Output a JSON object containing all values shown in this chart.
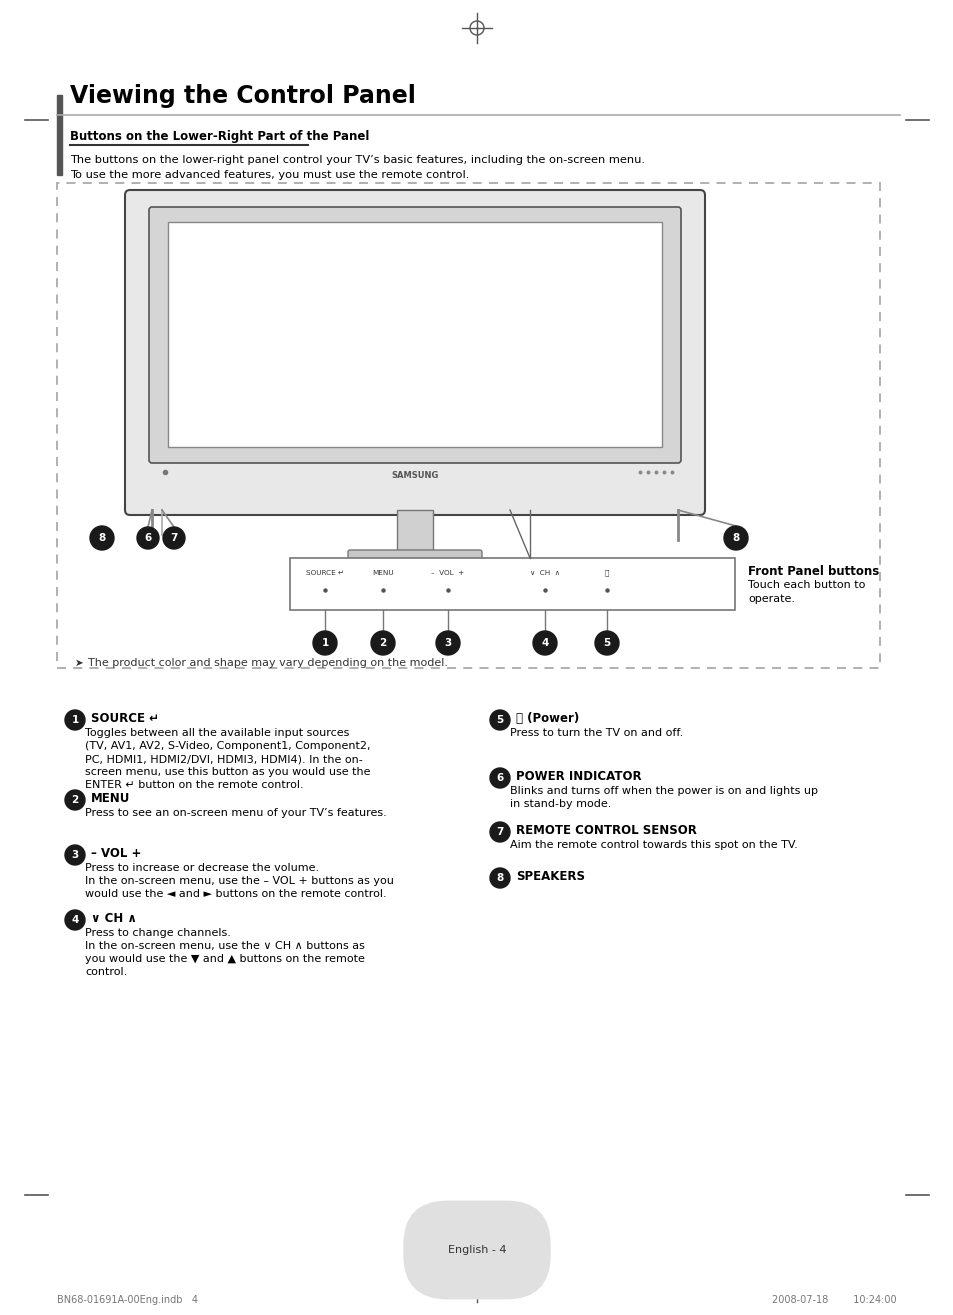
{
  "title": "Viewing the Control Panel",
  "subtitle": "Buttons on the Lower-Right Part of the Panel",
  "intro_line1": "The buttons on the lower-right panel control your TV’s basic features, including the on-screen menu.",
  "intro_line2": "To use the more advanced features, you must use the remote control.",
  "note": "The product color and shape may vary depending on the model.",
  "front_panel_label": "Front Panel buttons",
  "front_panel_desc1": "Touch each button to",
  "front_panel_desc2": "operate.",
  "items_left": [
    {
      "num": "1",
      "title": "SOURCE ↵",
      "body_lines": [
        "Toggles between all the available input sources",
        "(TV, AV1, AV2, S-Video, Component1, Component2,",
        "PC, HDMI1, HDMI2/DVI, HDMI3, HDMI4). In the on-",
        "screen menu, use this button as you would use the",
        "ENTER ↵ button on the remote control."
      ],
      "bold_word": "ENTER"
    },
    {
      "num": "2",
      "title": "MENU",
      "body_lines": [
        "Press to see an on-screen menu of your TV’s features."
      ],
      "bold_word": ""
    },
    {
      "num": "3",
      "title": "– VOL +",
      "body_lines": [
        "Press to increase or decrease the volume.",
        "In the on-screen menu, use the – VOL + buttons as you",
        "would use the ◄ and ► buttons on the remote control."
      ],
      "bold_word": ""
    },
    {
      "num": "4",
      "title": "∨ CH ∧",
      "body_lines": [
        "Press to change channels.",
        "In the on-screen menu, use the ∨ CH ∧ buttons as",
        "you would use the ▼ and ▲ buttons on the remote",
        "control."
      ],
      "bold_word": ""
    }
  ],
  "items_right": [
    {
      "num": "5",
      "title": "⏻ (Power)",
      "body_lines": [
        "Press to turn the TV on and off."
      ],
      "bold_word": ""
    },
    {
      "num": "6",
      "title": "POWER INDICATOR",
      "body_lines": [
        "Blinks and turns off when the power is on and lights up",
        "in stand-by mode."
      ],
      "bold_word": ""
    },
    {
      "num": "7",
      "title": "REMOTE CONTROL SENSOR",
      "body_lines": [
        "Aim the remote control towards this spot on the TV."
      ],
      "bold_word": ""
    },
    {
      "num": "8",
      "title": "SPEAKERS",
      "body_lines": [],
      "bold_word": ""
    }
  ],
  "bg_color": "#ffffff",
  "text_color": "#000000",
  "gray_color": "#888888",
  "dark_color": "#333333",
  "circle_color": "#1a1a1a",
  "page_label": "English - 4",
  "bottom_file": "BN68-01691A-00Eng.indb   4",
  "bottom_date": "2008-07-18        10:24:00"
}
